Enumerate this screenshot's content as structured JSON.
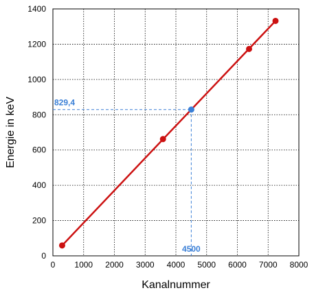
{
  "chart_data": {
    "type": "scatter",
    "xlabel": "Kanalnummer",
    "ylabel": "Energie in keV",
    "xlim": [
      0,
      8000
    ],
    "ylim": [
      0,
      1400
    ],
    "xticks": [
      "0",
      "1000",
      "2000",
      "3000",
      "4000",
      "5000",
      "6000",
      "7000",
      "8000"
    ],
    "yticks": [
      "0",
      "200",
      "400",
      "600",
      "800",
      "1000",
      "1200",
      "1400"
    ],
    "grid": true,
    "series": [
      {
        "color": "#cc1111",
        "points": [
          {
            "x": 300,
            "y": 59
          },
          {
            "x": 3580,
            "y": 662
          },
          {
            "x": 6380,
            "y": 1173
          },
          {
            "x": 7240,
            "y": 1332
          }
        ]
      }
    ],
    "fit_line": {
      "x": [
        300,
        7240
      ],
      "y": [
        59,
        1332
      ],
      "color": "#cc1111"
    },
    "highlight": {
      "x": 4500,
      "y": 829.4,
      "color": "#3a7fd6",
      "x_label": "4500",
      "y_label": "829,4"
    }
  }
}
